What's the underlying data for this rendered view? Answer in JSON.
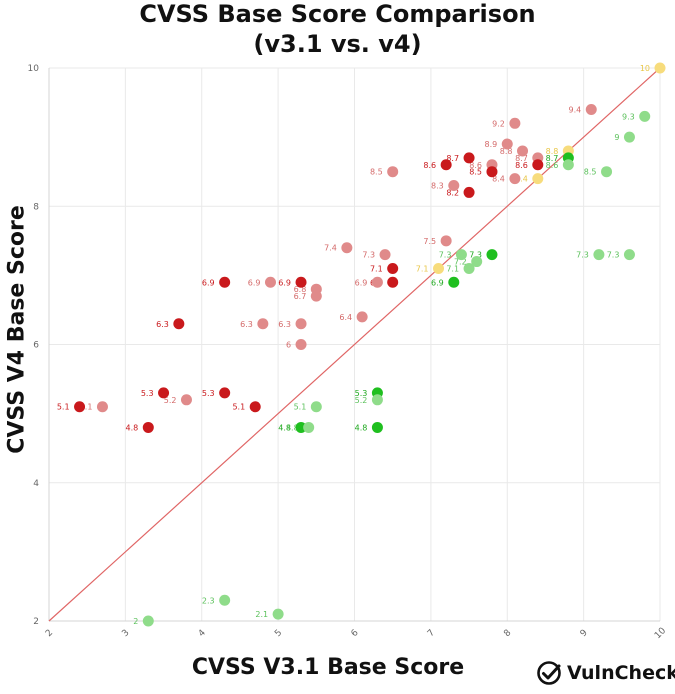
{
  "chart_data": {
    "type": "scatter",
    "title": "CVSS Base Score Comparison",
    "subtitle": "(v3.1 vs. v4)",
    "xlabel": "CVSS V3.1 Base Score",
    "ylabel": "CVSS V4 Base Score",
    "xlim": [
      2,
      10
    ],
    "ylim": [
      2,
      10
    ],
    "x_ticks": [
      "2",
      "3",
      "4",
      "5",
      "6",
      "7",
      "8",
      "9",
      "10"
    ],
    "y_ticks": [
      "2",
      "4",
      "6",
      "8",
      "10"
    ],
    "grid": true,
    "reference_line": {
      "from": [
        2,
        2
      ],
      "to": [
        10,
        10
      ],
      "color": "#e06666"
    },
    "colors": {
      "dark_red": "#c9191c",
      "light_red": "#e08a8a",
      "dark_green": "#1fbf1f",
      "light_green": "#8fdc8a",
      "yellow": "#f7dc7c"
    },
    "points": [
      {
        "x": 2.4,
        "y": 5.1,
        "label": "5.1",
        "color": "dark_red"
      },
      {
        "x": 2.7,
        "y": 5.1,
        "label": "5.1",
        "color": "light_red"
      },
      {
        "x": 3.3,
        "y": 4.8,
        "label": "4.8",
        "color": "dark_red"
      },
      {
        "x": 3.5,
        "y": 5.3,
        "label": "5.3",
        "color": "dark_red"
      },
      {
        "x": 3.8,
        "y": 5.2,
        "label": "5.2",
        "color": "light_red"
      },
      {
        "x": 3.7,
        "y": 6.3,
        "label": "6.3",
        "color": "dark_red"
      },
      {
        "x": 4.3,
        "y": 6.9,
        "label": "6.9",
        "color": "dark_red"
      },
      {
        "x": 4.3,
        "y": 5.3,
        "label": "5.3",
        "color": "dark_red"
      },
      {
        "x": 4.7,
        "y": 5.1,
        "label": "5.1",
        "color": "dark_red"
      },
      {
        "x": 4.8,
        "y": 6.3,
        "label": "6.3",
        "color": "light_red"
      },
      {
        "x": 4.9,
        "y": 6.9,
        "label": "6.9",
        "color": "light_red"
      },
      {
        "x": 5.3,
        "y": 6.9,
        "label": "6.9",
        "color": "dark_red"
      },
      {
        "x": 5.5,
        "y": 6.8,
        "label": "6.8",
        "color": "light_red"
      },
      {
        "x": 5.5,
        "y": 6.7,
        "label": "6.7",
        "color": "light_red"
      },
      {
        "x": 5.3,
        "y": 6.3,
        "label": "6.3",
        "color": "light_red"
      },
      {
        "x": 5.3,
        "y": 6.0,
        "label": "6",
        "color": "light_red"
      },
      {
        "x": 5.9,
        "y": 7.4,
        "label": "7.4",
        "color": "light_red"
      },
      {
        "x": 6.1,
        "y": 6.4,
        "label": "6.4",
        "color": "light_red"
      },
      {
        "x": 6.4,
        "y": 7.3,
        "label": "7.3",
        "color": "light_red"
      },
      {
        "x": 6.5,
        "y": 7.1,
        "label": "7.1",
        "color": "dark_red"
      },
      {
        "x": 6.3,
        "y": 6.9,
        "label": "6.9",
        "color": "light_red"
      },
      {
        "x": 6.5,
        "y": 6.9,
        "label": "6.9",
        "color": "dark_red"
      },
      {
        "x": 6.5,
        "y": 8.5,
        "label": "8.5",
        "color": "light_red"
      },
      {
        "x": 7.2,
        "y": 7.5,
        "label": "7.5",
        "color": "light_red"
      },
      {
        "x": 7.1,
        "y": 7.1,
        "label": "7.1",
        "color": "yellow"
      },
      {
        "x": 7.2,
        "y": 8.6,
        "label": "8.6",
        "color": "dark_red"
      },
      {
        "x": 7.3,
        "y": 8.3,
        "label": "8.3",
        "color": "light_red"
      },
      {
        "x": 7.5,
        "y": 8.2,
        "label": "8.2",
        "color": "dark_red"
      },
      {
        "x": 7.5,
        "y": 8.7,
        "label": "8.7",
        "color": "dark_red"
      },
      {
        "x": 7.8,
        "y": 8.6,
        "label": "8.6",
        "color": "light_red"
      },
      {
        "x": 7.8,
        "y": 8.5,
        "label": "8.5",
        "color": "dark_red"
      },
      {
        "x": 8.1,
        "y": 8.4,
        "label": "8.4",
        "color": "light_red"
      },
      {
        "x": 8.0,
        "y": 8.9,
        "label": "8.9",
        "color": "light_red"
      },
      {
        "x": 8.1,
        "y": 9.2,
        "label": "9.2",
        "color": "light_red"
      },
      {
        "x": 8.2,
        "y": 8.8,
        "label": "8.8",
        "color": "light_red"
      },
      {
        "x": 8.4,
        "y": 8.7,
        "label": "8.7",
        "color": "light_red"
      },
      {
        "x": 8.4,
        "y": 8.6,
        "label": "8.6",
        "color": "dark_red"
      },
      {
        "x": 8.4,
        "y": 8.4,
        "label": "8.4",
        "color": "yellow"
      },
      {
        "x": 8.8,
        "y": 8.8,
        "label": "8.8",
        "color": "yellow"
      },
      {
        "x": 8.8,
        "y": 8.7,
        "label": "8.7",
        "color": "dark_green"
      },
      {
        "x": 8.8,
        "y": 8.6,
        "label": "8.6",
        "color": "light_green"
      },
      {
        "x": 9.1,
        "y": 9.4,
        "label": "9.4",
        "color": "light_red"
      },
      {
        "x": 9.3,
        "y": 8.5,
        "label": "8.5",
        "color": "light_green"
      },
      {
        "x": 9.6,
        "y": 9.0,
        "label": "9",
        "color": "light_green"
      },
      {
        "x": 9.8,
        "y": 9.3,
        "label": "9.3",
        "color": "light_green"
      },
      {
        "x": 10.0,
        "y": 10.0,
        "label": "10",
        "color": "yellow"
      },
      {
        "x": 7.4,
        "y": 7.3,
        "label": "7.3",
        "color": "light_green"
      },
      {
        "x": 7.5,
        "y": 7.1,
        "label": "7.1",
        "color": "light_green"
      },
      {
        "x": 7.6,
        "y": 7.2,
        "label": "7.2",
        "color": "light_green"
      },
      {
        "x": 7.8,
        "y": 7.3,
        "label": "7.3",
        "color": "dark_green"
      },
      {
        "x": 7.3,
        "y": 6.9,
        "label": "6.9",
        "color": "dark_green"
      },
      {
        "x": 9.2,
        "y": 7.3,
        "label": "7.3",
        "color": "light_green"
      },
      {
        "x": 9.6,
        "y": 7.3,
        "label": "7.3",
        "color": "light_green"
      },
      {
        "x": 6.3,
        "y": 5.3,
        "label": "5.3",
        "color": "dark_green"
      },
      {
        "x": 6.3,
        "y": 5.2,
        "label": "5.2",
        "color": "light_green"
      },
      {
        "x": 6.3,
        "y": 4.8,
        "label": "4.8",
        "color": "dark_green"
      },
      {
        "x": 5.5,
        "y": 5.1,
        "label": "5.1",
        "color": "light_green"
      },
      {
        "x": 5.3,
        "y": 4.8,
        "label": "4.8",
        "color": "dark_green"
      },
      {
        "x": 5.4,
        "y": 4.8,
        "label": "4.8",
        "color": "light_green"
      },
      {
        "x": 4.3,
        "y": 2.3,
        "label": "2.3",
        "color": "light_green"
      },
      {
        "x": 5.0,
        "y": 2.1,
        "label": "2.1",
        "color": "light_green"
      },
      {
        "x": 3.3,
        "y": 2.0,
        "label": "2",
        "color": "light_green"
      }
    ]
  },
  "brand": {
    "name": "VulnCheck",
    "icon": "checkmark-logo-icon"
  }
}
